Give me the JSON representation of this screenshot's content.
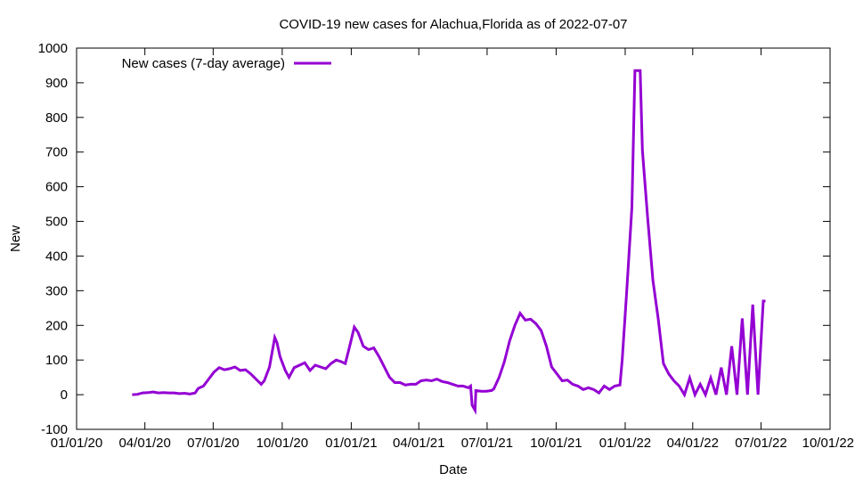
{
  "chart_data": {
    "type": "line",
    "title": "COVID-19 new cases for Alachua,Florida as of 2022-07-07",
    "xlabel": "Date",
    "ylabel": "New",
    "ylim": [
      -100,
      1000
    ],
    "yticks": [
      -100,
      0,
      100,
      200,
      300,
      400,
      500,
      600,
      700,
      800,
      900,
      1000
    ],
    "xlim": [
      "2020-01-01",
      "2022-10-01"
    ],
    "xticks": [
      {
        "date": "2020-01-01",
        "label": "01/01/20"
      },
      {
        "date": "2020-04-01",
        "label": "04/01/20"
      },
      {
        "date": "2020-07-01",
        "label": "07/01/20"
      },
      {
        "date": "2020-10-01",
        "label": "10/01/20"
      },
      {
        "date": "2021-01-01",
        "label": "01/01/21"
      },
      {
        "date": "2021-04-01",
        "label": "04/01/21"
      },
      {
        "date": "2021-07-01",
        "label": "07/01/21"
      },
      {
        "date": "2021-10-01",
        "label": "10/01/21"
      },
      {
        "date": "2022-01-01",
        "label": "01/01/22"
      },
      {
        "date": "2022-04-01",
        "label": "04/01/22"
      },
      {
        "date": "2022-07-01",
        "label": "07/01/22"
      },
      {
        "date": "2022-10-01",
        "label": "10/01/22"
      }
    ],
    "grid": false,
    "legend_position": "top-left",
    "series": [
      {
        "name": "New cases (7-day average)",
        "color": "#9400d3",
        "points": [
          [
            "2020-03-15",
            0
          ],
          [
            "2020-03-22",
            1
          ],
          [
            "2020-03-29",
            5
          ],
          [
            "2020-04-05",
            6
          ],
          [
            "2020-04-12",
            8
          ],
          [
            "2020-04-19",
            5
          ],
          [
            "2020-04-26",
            6
          ],
          [
            "2020-05-03",
            5
          ],
          [
            "2020-05-10",
            5
          ],
          [
            "2020-05-17",
            3
          ],
          [
            "2020-05-24",
            4
          ],
          [
            "2020-05-31",
            2
          ],
          [
            "2020-06-07",
            5
          ],
          [
            "2020-06-11",
            18
          ],
          [
            "2020-06-18",
            25
          ],
          [
            "2020-06-25",
            45
          ],
          [
            "2020-07-02",
            65
          ],
          [
            "2020-07-09",
            78
          ],
          [
            "2020-07-16",
            72
          ],
          [
            "2020-07-23",
            75
          ],
          [
            "2020-07-30",
            80
          ],
          [
            "2020-08-06",
            70
          ],
          [
            "2020-08-13",
            72
          ],
          [
            "2020-08-20",
            60
          ],
          [
            "2020-08-27",
            45
          ],
          [
            "2020-09-03",
            30
          ],
          [
            "2020-09-07",
            40
          ],
          [
            "2020-09-14",
            80
          ],
          [
            "2020-09-21",
            165
          ],
          [
            "2020-09-24",
            150
          ],
          [
            "2020-09-28",
            110
          ],
          [
            "2020-10-05",
            70
          ],
          [
            "2020-10-10",
            50
          ],
          [
            "2020-10-17",
            78
          ],
          [
            "2020-10-24",
            85
          ],
          [
            "2020-10-31",
            92
          ],
          [
            "2020-11-07",
            70
          ],
          [
            "2020-11-14",
            85
          ],
          [
            "2020-11-21",
            80
          ],
          [
            "2020-11-28",
            75
          ],
          [
            "2020-12-05",
            90
          ],
          [
            "2020-12-12",
            100
          ],
          [
            "2020-12-19",
            95
          ],
          [
            "2020-12-24",
            90
          ],
          [
            "2020-12-31",
            150
          ],
          [
            "2021-01-05",
            195
          ],
          [
            "2021-01-10",
            180
          ],
          [
            "2021-01-17",
            140
          ],
          [
            "2021-01-24",
            130
          ],
          [
            "2021-01-31",
            135
          ],
          [
            "2021-02-07",
            110
          ],
          [
            "2021-02-14",
            80
          ],
          [
            "2021-02-21",
            50
          ],
          [
            "2021-02-28",
            35
          ],
          [
            "2021-03-07",
            35
          ],
          [
            "2021-03-14",
            28
          ],
          [
            "2021-03-21",
            30
          ],
          [
            "2021-03-28",
            30
          ],
          [
            "2021-04-04",
            40
          ],
          [
            "2021-04-11",
            42
          ],
          [
            "2021-04-18",
            40
          ],
          [
            "2021-04-25",
            45
          ],
          [
            "2021-05-02",
            38
          ],
          [
            "2021-05-09",
            35
          ],
          [
            "2021-05-16",
            30
          ],
          [
            "2021-05-23",
            25
          ],
          [
            "2021-05-30",
            25
          ],
          [
            "2021-06-06",
            20
          ],
          [
            "2021-06-09",
            25
          ],
          [
            "2021-06-11",
            -30
          ],
          [
            "2021-06-15",
            -45
          ],
          [
            "2021-06-16",
            12
          ],
          [
            "2021-06-23",
            10
          ],
          [
            "2021-06-30",
            10
          ],
          [
            "2021-07-07",
            12
          ],
          [
            "2021-07-10",
            17
          ],
          [
            "2021-07-17",
            50
          ],
          [
            "2021-07-24",
            95
          ],
          [
            "2021-07-31",
            155
          ],
          [
            "2021-08-07",
            200
          ],
          [
            "2021-08-14",
            235
          ],
          [
            "2021-08-21",
            215
          ],
          [
            "2021-08-28",
            218
          ],
          [
            "2021-09-04",
            205
          ],
          [
            "2021-09-11",
            185
          ],
          [
            "2021-09-18",
            140
          ],
          [
            "2021-09-25",
            80
          ],
          [
            "2021-10-02",
            60
          ],
          [
            "2021-10-09",
            40
          ],
          [
            "2021-10-16",
            42
          ],
          [
            "2021-10-23",
            30
          ],
          [
            "2021-10-30",
            25
          ],
          [
            "2021-11-06",
            15
          ],
          [
            "2021-11-13",
            20
          ],
          [
            "2021-11-20",
            15
          ],
          [
            "2021-11-27",
            5
          ],
          [
            "2021-12-04",
            25
          ],
          [
            "2021-12-11",
            15
          ],
          [
            "2021-12-18",
            25
          ],
          [
            "2021-12-25",
            28
          ],
          [
            "2021-12-28",
            100
          ],
          [
            "2022-01-03",
            295
          ],
          [
            "2022-01-10",
            540
          ],
          [
            "2022-01-14",
            935
          ],
          [
            "2022-01-21",
            935
          ],
          [
            "2022-01-24",
            705
          ],
          [
            "2022-01-31",
            510
          ],
          [
            "2022-02-07",
            330
          ],
          [
            "2022-02-14",
            220
          ],
          [
            "2022-02-21",
            90
          ],
          [
            "2022-02-28",
            60
          ],
          [
            "2022-03-07",
            40
          ],
          [
            "2022-03-14",
            25
          ],
          [
            "2022-03-21",
            0
          ],
          [
            "2022-03-28",
            48
          ],
          [
            "2022-04-04",
            0
          ],
          [
            "2022-04-11",
            30
          ],
          [
            "2022-04-18",
            0
          ],
          [
            "2022-04-25",
            48
          ],
          [
            "2022-05-02",
            0
          ],
          [
            "2022-05-09",
            78
          ],
          [
            "2022-05-16",
            0
          ],
          [
            "2022-05-23",
            140
          ],
          [
            "2022-05-30",
            0
          ],
          [
            "2022-06-06",
            220
          ],
          [
            "2022-06-13",
            0
          ],
          [
            "2022-06-20",
            260
          ],
          [
            "2022-06-27",
            0
          ],
          [
            "2022-07-04",
            270
          ],
          [
            "2022-07-07",
            270
          ]
        ]
      }
    ]
  }
}
